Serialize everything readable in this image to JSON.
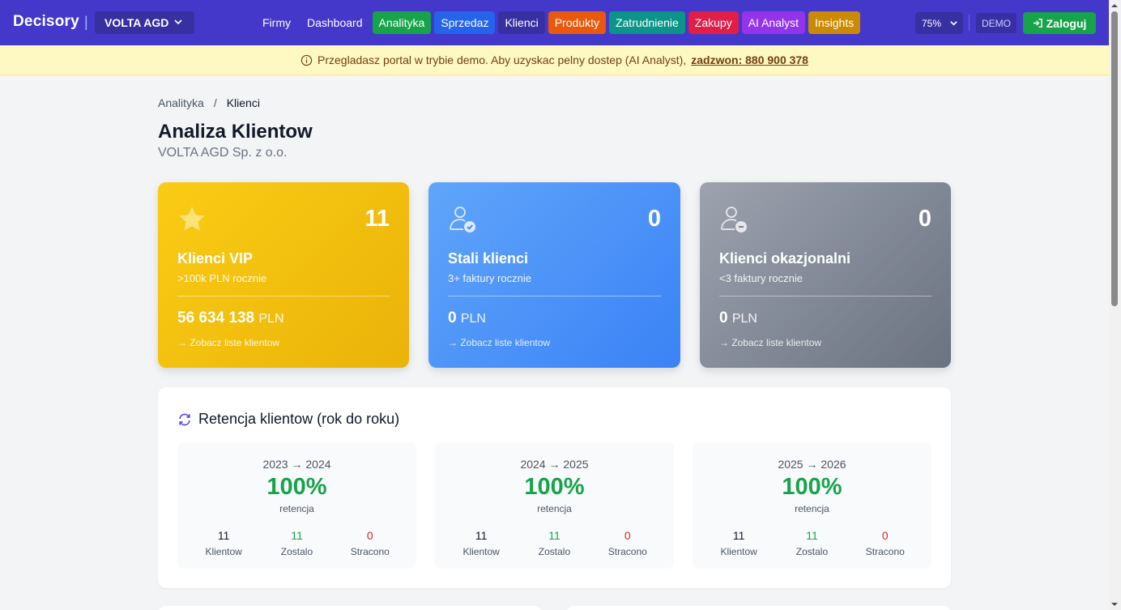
{
  "navbar": {
    "brand": "Decisory",
    "separator": "|",
    "company": "VOLTA AGD",
    "links": [
      {
        "label": "Firmy",
        "color": ""
      },
      {
        "label": "Dashboard",
        "color": ""
      },
      {
        "label": "Analityka",
        "color": "#16a34a"
      },
      {
        "label": "Sprzedaz",
        "color": "#2563eb"
      },
      {
        "label": "Klienci",
        "color": "#3730a3"
      },
      {
        "label": "Produkty",
        "color": "#ea580c"
      },
      {
        "label": "Zatrudnienie",
        "color": "#0d9488"
      },
      {
        "label": "Zakupy",
        "color": "#e11d48"
      },
      {
        "label": "AI Analyst",
        "color": "#9333ea"
      },
      {
        "label": "Insights",
        "color": "#ca8a04"
      }
    ],
    "zoom": "75%",
    "demo_badge": "DEMO",
    "login_label": "Zaloguj"
  },
  "banner": {
    "text": "Przegladasz portal w trybie demo. Aby uzyskac pelny dostep (AI Analyst),",
    "link": "zadzwon: 880 900 378"
  },
  "breadcrumb": {
    "parent": "Analityka",
    "separator": "/",
    "current": "Klienci"
  },
  "page": {
    "title": "Analiza Klientow",
    "subtitle": "VOLTA AGD Sp. z o.o."
  },
  "cards": [
    {
      "icon": "star-icon",
      "count": "11",
      "title": "Klienci VIP",
      "desc": ">100k PLN rocznie",
      "amount": "56 634 138",
      "unit": "PLN",
      "link": "→ Zobacz liste klientow",
      "color": "#eab308"
    },
    {
      "icon": "user-check-icon",
      "count": "0",
      "title": "Stali klienci",
      "desc": "3+ faktury rocznie",
      "amount": "0",
      "unit": "PLN",
      "link": "→ Zobacz liste klientow",
      "color": "#3b82f6"
    },
    {
      "icon": "user-minus-icon",
      "count": "0",
      "title": "Klienci okazjonalni",
      "desc": "<3 faktury rocznie",
      "amount": "0",
      "unit": "PLN",
      "link": "→ Zobacz liste klientow",
      "color": "#6b7280"
    }
  ],
  "retention": {
    "title": "Retencja klientow (rok do roku)",
    "periods": [
      {
        "period": "2023 → 2024",
        "pct": "100%",
        "label": "retencja",
        "total": "11",
        "kept": "11",
        "lost": "0",
        "total_label": "Klientow",
        "kept_label": "Zostalo",
        "lost_label": "Stracono"
      },
      {
        "period": "2024 → 2025",
        "pct": "100%",
        "label": "retencja",
        "total": "11",
        "kept": "11",
        "lost": "0",
        "total_label": "Klientow",
        "kept_label": "Zostalo",
        "lost_label": "Stracono"
      },
      {
        "period": "2025 → 2026",
        "pct": "100%",
        "label": "retencja",
        "total": "11",
        "kept": "11",
        "lost": "0",
        "total_label": "Klientow",
        "kept_label": "Zostalo",
        "lost_label": "Stracono"
      }
    ]
  }
}
